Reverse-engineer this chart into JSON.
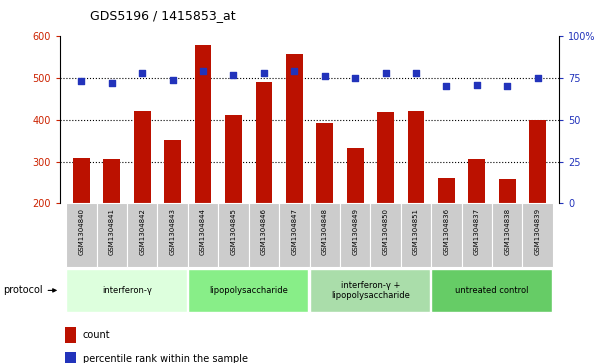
{
  "title": "GDS5196 / 1415853_at",
  "samples": [
    "GSM1304840",
    "GSM1304841",
    "GSM1304842",
    "GSM1304843",
    "GSM1304844",
    "GSM1304845",
    "GSM1304846",
    "GSM1304847",
    "GSM1304848",
    "GSM1304849",
    "GSM1304850",
    "GSM1304851",
    "GSM1304836",
    "GSM1304837",
    "GSM1304838",
    "GSM1304839"
  ],
  "counts": [
    308,
    305,
    422,
    352,
    578,
    412,
    490,
    557,
    392,
    332,
    418,
    420,
    260,
    305,
    258,
    400
  ],
  "percentile_ranks": [
    73,
    72,
    78,
    74,
    79,
    77,
    78,
    79,
    76,
    75,
    78,
    78,
    70,
    71,
    70,
    75
  ],
  "ylim_left": [
    200,
    600
  ],
  "ylim_right": [
    0,
    100
  ],
  "yticks_left": [
    200,
    300,
    400,
    500,
    600
  ],
  "yticks_right": [
    0,
    25,
    50,
    75,
    100
  ],
  "bar_color": "#bb1100",
  "dot_color": "#2233bb",
  "groups": [
    {
      "label": "interferon-γ",
      "start": 0,
      "end": 3,
      "color": "#ddffdd"
    },
    {
      "label": "lipopolysaccharide",
      "start": 4,
      "end": 7,
      "color": "#88ee88"
    },
    {
      "label": "interferon-γ +\nlipopolysaccharide",
      "start": 8,
      "end": 11,
      "color": "#aaddaa"
    },
    {
      "label": "untreated control",
      "start": 12,
      "end": 15,
      "color": "#66cc66"
    }
  ],
  "legend_items": [
    {
      "label": "count",
      "color": "#bb1100"
    },
    {
      "label": "percentile rank within the sample",
      "color": "#2233bb"
    }
  ],
  "left_label_color": "#cc2200",
  "right_label_color": "#2233bb",
  "bar_width": 0.55,
  "label_box_color": "#cccccc",
  "fig_width": 6.01,
  "fig_height": 3.63,
  "dpi": 100
}
